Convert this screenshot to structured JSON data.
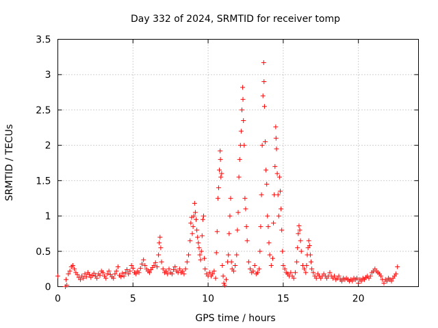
{
  "chart_data": {
    "type": "scatter",
    "title": "Day 332 of 2024, SRMTID for receiver tomp",
    "xlabel": "GPS time / hours",
    "ylabel": "SRMTID / TECUs",
    "xlim": [
      0,
      24
    ],
    "ylim": [
      0,
      3.5
    ],
    "x_ticks": [
      0,
      5,
      10,
      15,
      20
    ],
    "x_tick_labels": [
      "0",
      "5",
      "10",
      "15",
      "20"
    ],
    "y_ticks": [
      0,
      0.5,
      1,
      1.5,
      2,
      2.5,
      3,
      3.5
    ],
    "y_tick_labels": [
      "0",
      "0.5",
      "1",
      "1.5",
      "2",
      "2.5",
      "3",
      "3.5"
    ],
    "grid": true,
    "marker": "plus",
    "series": [
      {
        "name": "SRMTID",
        "color": "#ff0000",
        "points": [
          [
            0.0,
            0.15
          ],
          [
            0.5,
            0.0
          ],
          [
            0.55,
            0.1
          ],
          [
            0.6,
            0.02
          ],
          [
            0.7,
            0.18
          ],
          [
            0.8,
            0.22
          ],
          [
            0.9,
            0.28
          ],
          [
            1.0,
            0.3
          ],
          [
            1.1,
            0.25
          ],
          [
            1.2,
            0.2
          ],
          [
            1.3,
            0.17
          ],
          [
            1.4,
            0.13
          ],
          [
            1.5,
            0.1
          ],
          [
            1.6,
            0.15
          ],
          [
            1.7,
            0.12
          ],
          [
            1.8,
            0.18
          ],
          [
            1.9,
            0.14
          ],
          [
            2.0,
            0.2
          ],
          [
            2.1,
            0.17
          ],
          [
            2.2,
            0.13
          ],
          [
            2.3,
            0.16
          ],
          [
            2.4,
            0.19
          ],
          [
            2.5,
            0.15
          ],
          [
            2.6,
            0.12
          ],
          [
            2.7,
            0.18
          ],
          [
            2.8,
            0.16
          ],
          [
            2.9,
            0.22
          ],
          [
            3.0,
            0.2
          ],
          [
            3.1,
            0.15
          ],
          [
            3.2,
            0.12
          ],
          [
            3.3,
            0.18
          ],
          [
            3.4,
            0.22
          ],
          [
            3.5,
            0.17
          ],
          [
            3.6,
            0.14
          ],
          [
            3.7,
            0.12
          ],
          [
            3.8,
            0.18
          ],
          [
            3.9,
            0.22
          ],
          [
            4.0,
            0.28
          ],
          [
            4.1,
            0.16
          ],
          [
            4.2,
            0.14
          ],
          [
            4.3,
            0.19
          ],
          [
            4.4,
            0.15
          ],
          [
            4.5,
            0.2
          ],
          [
            4.6,
            0.24
          ],
          [
            4.7,
            0.18
          ],
          [
            4.8,
            0.22
          ],
          [
            4.9,
            0.3
          ],
          [
            5.0,
            0.26
          ],
          [
            5.1,
            0.2
          ],
          [
            5.2,
            0.18
          ],
          [
            5.3,
            0.22
          ],
          [
            5.4,
            0.2
          ],
          [
            5.5,
            0.26
          ],
          [
            5.6,
            0.32
          ],
          [
            5.7,
            0.38
          ],
          [
            5.8,
            0.3
          ],
          [
            5.9,
            0.25
          ],
          [
            6.0,
            0.22
          ],
          [
            6.1,
            0.2
          ],
          [
            6.2,
            0.24
          ],
          [
            6.3,
            0.27
          ],
          [
            6.4,
            0.3
          ],
          [
            6.5,
            0.34
          ],
          [
            6.6,
            0.28
          ],
          [
            6.7,
            0.45
          ],
          [
            6.75,
            0.62
          ],
          [
            6.8,
            0.7
          ],
          [
            6.85,
            0.55
          ],
          [
            6.9,
            0.35
          ],
          [
            7.0,
            0.25
          ],
          [
            7.1,
            0.2
          ],
          [
            7.2,
            0.22
          ],
          [
            7.3,
            0.18
          ],
          [
            7.4,
            0.25
          ],
          [
            7.5,
            0.2
          ],
          [
            7.6,
            0.18
          ],
          [
            7.7,
            0.24
          ],
          [
            7.8,
            0.28
          ],
          [
            7.9,
            0.22
          ],
          [
            8.0,
            0.2
          ],
          [
            8.1,
            0.25
          ],
          [
            8.2,
            0.2
          ],
          [
            8.3,
            0.22
          ],
          [
            8.4,
            0.18
          ],
          [
            8.5,
            0.25
          ],
          [
            8.6,
            0.35
          ],
          [
            8.7,
            0.45
          ],
          [
            8.8,
            0.65
          ],
          [
            8.85,
            0.9
          ],
          [
            8.9,
            0.98
          ],
          [
            8.95,
            0.75
          ],
          [
            9.0,
            0.85
          ],
          [
            9.05,
            1.0
          ],
          [
            9.1,
            1.18
          ],
          [
            9.15,
            1.05
          ],
          [
            9.2,
            0.95
          ],
          [
            9.25,
            0.8
          ],
          [
            9.3,
            0.7
          ],
          [
            9.35,
            0.62
          ],
          [
            9.4,
            0.55
          ],
          [
            9.45,
            0.45
          ],
          [
            9.5,
            0.38
          ],
          [
            9.55,
            0.5
          ],
          [
            9.6,
            0.72
          ],
          [
            9.65,
            0.95
          ],
          [
            9.7,
            1.0
          ],
          [
            9.75,
            0.4
          ],
          [
            9.8,
            0.25
          ],
          [
            9.9,
            0.18
          ],
          [
            10.0,
            0.15
          ],
          [
            10.1,
            0.2
          ],
          [
            10.2,
            0.15
          ],
          [
            10.3,
            0.18
          ],
          [
            10.4,
            0.22
          ],
          [
            10.5,
            0.12
          ],
          [
            10.55,
            0.48
          ],
          [
            10.6,
            0.78
          ],
          [
            10.65,
            1.25
          ],
          [
            10.7,
            1.4
          ],
          [
            10.75,
            1.65
          ],
          [
            10.8,
            1.92
          ],
          [
            10.82,
            1.8
          ],
          [
            10.85,
            1.55
          ],
          [
            10.9,
            1.6
          ],
          [
            10.95,
            0.3
          ],
          [
            11.0,
            0.15
          ],
          [
            11.05,
            0.05
          ],
          [
            11.1,
            0.02
          ],
          [
            11.2,
            0.1
          ],
          [
            11.3,
            0.35
          ],
          [
            11.35,
            0.45
          ],
          [
            11.4,
            0.75
          ],
          [
            11.45,
            1.0
          ],
          [
            11.5,
            1.25
          ],
          [
            11.55,
            0.35
          ],
          [
            11.6,
            0.25
          ],
          [
            11.7,
            0.22
          ],
          [
            11.8,
            0.3
          ],
          [
            11.9,
            0.45
          ],
          [
            11.95,
            0.8
          ],
          [
            12.0,
            1.05
          ],
          [
            12.05,
            1.55
          ],
          [
            12.1,
            1.8
          ],
          [
            12.15,
            2.0
          ],
          [
            12.2,
            2.2
          ],
          [
            12.25,
            2.5
          ],
          [
            12.3,
            2.82
          ],
          [
            12.32,
            2.65
          ],
          [
            12.35,
            2.35
          ],
          [
            12.4,
            2.0
          ],
          [
            12.45,
            1.25
          ],
          [
            12.5,
            1.1
          ],
          [
            12.55,
            0.85
          ],
          [
            12.6,
            0.65
          ],
          [
            12.7,
            0.35
          ],
          [
            12.8,
            0.25
          ],
          [
            12.9,
            0.2
          ],
          [
            13.0,
            0.22
          ],
          [
            13.1,
            0.3
          ],
          [
            13.2,
            0.18
          ],
          [
            13.3,
            0.2
          ],
          [
            13.4,
            0.25
          ],
          [
            13.45,
            0.5
          ],
          [
            13.5,
            0.85
          ],
          [
            13.55,
            1.3
          ],
          [
            13.6,
            2.0
          ],
          [
            13.65,
            2.7
          ],
          [
            13.7,
            3.17
          ],
          [
            13.72,
            2.9
          ],
          [
            13.75,
            2.55
          ],
          [
            13.8,
            2.05
          ],
          [
            13.85,
            1.65
          ],
          [
            13.9,
            1.45
          ],
          [
            13.95,
            1.0
          ],
          [
            14.0,
            0.85
          ],
          [
            14.05,
            0.62
          ],
          [
            14.1,
            0.45
          ],
          [
            14.2,
            0.3
          ],
          [
            14.3,
            0.4
          ],
          [
            14.35,
            0.9
          ],
          [
            14.4,
            1.3
          ],
          [
            14.45,
            1.7
          ],
          [
            14.5,
            2.26
          ],
          [
            14.52,
            2.1
          ],
          [
            14.55,
            1.95
          ],
          [
            14.6,
            1.6
          ],
          [
            14.65,
            1.3
          ],
          [
            14.7,
            1.0
          ],
          [
            14.75,
            1.55
          ],
          [
            14.8,
            1.35
          ],
          [
            14.85,
            1.1
          ],
          [
            14.9,
            0.8
          ],
          [
            14.95,
            0.5
          ],
          [
            15.0,
            0.3
          ],
          [
            15.1,
            0.25
          ],
          [
            15.2,
            0.2
          ],
          [
            15.3,
            0.18
          ],
          [
            15.4,
            0.15
          ],
          [
            15.5,
            0.2
          ],
          [
            15.6,
            0.15
          ],
          [
            15.7,
            0.12
          ],
          [
            15.8,
            0.2
          ],
          [
            15.9,
            0.35
          ],
          [
            15.95,
            0.55
          ],
          [
            16.0,
            0.75
          ],
          [
            16.05,
            0.86
          ],
          [
            16.1,
            0.8
          ],
          [
            16.15,
            0.65
          ],
          [
            16.2,
            0.5
          ],
          [
            16.3,
            0.3
          ],
          [
            16.4,
            0.25
          ],
          [
            16.5,
            0.2
          ],
          [
            16.55,
            0.3
          ],
          [
            16.6,
            0.45
          ],
          [
            16.65,
            0.55
          ],
          [
            16.7,
            0.65
          ],
          [
            16.75,
            0.58
          ],
          [
            16.8,
            0.45
          ],
          [
            16.85,
            0.35
          ],
          [
            16.9,
            0.25
          ],
          [
            17.0,
            0.2
          ],
          [
            17.1,
            0.15
          ],
          [
            17.2,
            0.12
          ],
          [
            17.3,
            0.18
          ],
          [
            17.4,
            0.15
          ],
          [
            17.5,
            0.12
          ],
          [
            17.6,
            0.15
          ],
          [
            17.7,
            0.18
          ],
          [
            17.8,
            0.15
          ],
          [
            17.9,
            0.12
          ],
          [
            18.0,
            0.15
          ],
          [
            18.1,
            0.2
          ],
          [
            18.2,
            0.15
          ],
          [
            18.3,
            0.12
          ],
          [
            18.4,
            0.15
          ],
          [
            18.5,
            0.1
          ],
          [
            18.6,
            0.12
          ],
          [
            18.7,
            0.15
          ],
          [
            18.8,
            0.1
          ],
          [
            18.9,
            0.08
          ],
          [
            19.0,
            0.12
          ],
          [
            19.1,
            0.1
          ],
          [
            19.2,
            0.12
          ],
          [
            19.3,
            0.1
          ],
          [
            19.4,
            0.08
          ],
          [
            19.5,
            0.1
          ],
          [
            19.6,
            0.08
          ],
          [
            19.7,
            0.12
          ],
          [
            19.8,
            0.1
          ],
          [
            19.9,
            0.12
          ],
          [
            20.0,
            0.05
          ],
          [
            20.1,
            0.1
          ],
          [
            20.2,
            0.08
          ],
          [
            20.3,
            0.12
          ],
          [
            20.4,
            0.1
          ],
          [
            20.5,
            0.13
          ],
          [
            20.6,
            0.15
          ],
          [
            20.7,
            0.12
          ],
          [
            20.8,
            0.15
          ],
          [
            20.9,
            0.2
          ],
          [
            21.0,
            0.22
          ],
          [
            21.1,
            0.25
          ],
          [
            21.2,
            0.22
          ],
          [
            21.3,
            0.2
          ],
          [
            21.4,
            0.18
          ],
          [
            21.5,
            0.15
          ],
          [
            21.6,
            0.1
          ],
          [
            21.7,
            0.05
          ],
          [
            21.8,
            0.1
          ],
          [
            21.9,
            0.08
          ],
          [
            22.0,
            0.12
          ],
          [
            22.1,
            0.1
          ],
          [
            22.2,
            0.08
          ],
          [
            22.3,
            0.12
          ],
          [
            22.4,
            0.15
          ],
          [
            22.5,
            0.18
          ],
          [
            22.6,
            0.28
          ]
        ]
      }
    ]
  }
}
